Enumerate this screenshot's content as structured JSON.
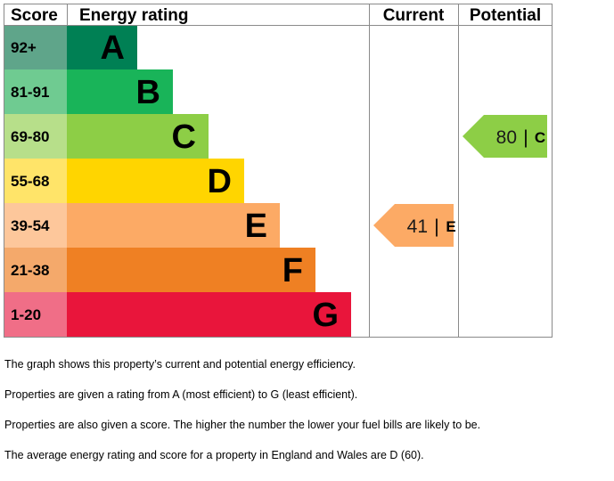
{
  "chart_data": {
    "type": "bar",
    "headers": {
      "score": "Score",
      "rating": "Energy rating",
      "current": "Current",
      "potential": "Potential"
    },
    "bands": [
      {
        "letter": "A",
        "range": "92+",
        "color": "#008054",
        "score_color": "#5fa58a"
      },
      {
        "letter": "B",
        "range": "81-91",
        "color": "#19b459",
        "score_color": "#6fcb91"
      },
      {
        "letter": "C",
        "range": "69-80",
        "color": "#8dce46",
        "score_color": "#b7df8a"
      },
      {
        "letter": "D",
        "range": "55-68",
        "color": "#ffd500",
        "score_color": "#ffe469"
      },
      {
        "letter": "E",
        "range": "39-54",
        "color": "#fcaa65",
        "score_color": "#fdc79b"
      },
      {
        "letter": "F",
        "range": "21-38",
        "color": "#ef8023",
        "score_color": "#f4a96b"
      },
      {
        "letter": "G",
        "range": "1-20",
        "color": "#e9153b",
        "score_color": "#f06e87"
      }
    ],
    "current": {
      "score": 41,
      "score_text": "41",
      "rating": "E",
      "color": "#fcaa65"
    },
    "potential": {
      "score": 80,
      "score_text": "80",
      "rating": "C",
      "color": "#8dce46"
    },
    "separator": "|"
  },
  "notes": [
    "The graph shows this property’s current and potential energy efficiency.",
    "Properties are given a rating from A (most efficient) to G (least efficient).",
    "Properties are also given a score. The higher the number the lower your fuel bills are likely to be.",
    "The average energy rating and score for a property in England and Wales are D (60)."
  ]
}
